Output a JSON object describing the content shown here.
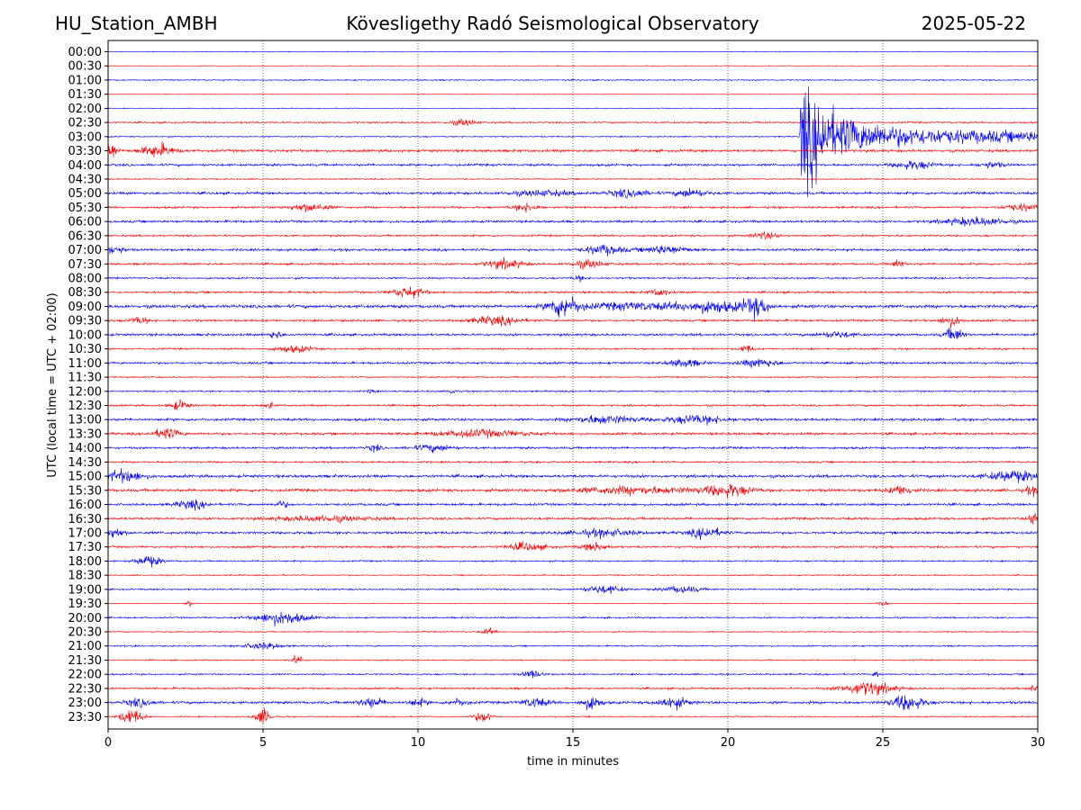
{
  "header": {
    "station": "HU_Station_AMBH",
    "title": "Kövesligethy Radó Seismological Observatory",
    "date": "2025-05-22"
  },
  "chart_data": {
    "type": "line",
    "title": "Kövesligethy Radó Seismological Observatory",
    "xlabel": "time in minutes",
    "ylabel": "UTC (local time = UTC + 02:00)",
    "xlim": [
      0,
      30
    ],
    "xticks": [
      0,
      5,
      10,
      15,
      20,
      25,
      30
    ],
    "grid": "vertical dotted at x ticks",
    "colors": {
      "even_rows": "#0000ff",
      "odd_rows": "#ff0000"
    },
    "rows": [
      "00:00",
      "00:30",
      "01:00",
      "01:30",
      "02:00",
      "02:30",
      "03:00",
      "03:30",
      "04:00",
      "04:30",
      "05:00",
      "05:30",
      "06:00",
      "06:30",
      "07:00",
      "07:30",
      "08:00",
      "08:30",
      "09:00",
      "09:30",
      "10:00",
      "10:30",
      "11:00",
      "11:30",
      "12:00",
      "12:30",
      "13:00",
      "13:30",
      "14:00",
      "14:30",
      "15:00",
      "15:30",
      "16:00",
      "16:30",
      "17:00",
      "17:30",
      "18:00",
      "18:30",
      "19:00",
      "19:30",
      "20:00",
      "20:30",
      "21:00",
      "21:30",
      "22:00",
      "22:30",
      "23:00",
      "23:30"
    ],
    "annotations": [
      {
        "row": "03:00",
        "description": "earthquake event",
        "start_minute": 22.3,
        "peak_minute": 22.7
      }
    ],
    "base_noise": [
      0.5,
      0.5,
      0.8,
      0.5,
      0.5,
      1.0,
      0.8,
      1.6,
      1.5,
      0.8,
      1.6,
      1.3,
      1.5,
      1.2,
      1.5,
      1.3,
      1.1,
      1.3,
      2.0,
      1.4,
      1.5,
      1.1,
      1.4,
      0.9,
      1.0,
      1.2,
      1.6,
      1.5,
      1.4,
      1.2,
      1.8,
      1.8,
      1.5,
      1.5,
      1.6,
      1.3,
      1.0,
      0.8,
      1.0,
      0.5,
      1.0,
      0.8,
      0.9,
      0.8,
      1.0,
      1.2,
      1.6,
      0.8
    ],
    "bursts": [
      {
        "row": "02:30",
        "x": 11.5,
        "w": 0.4,
        "a": 2.5
      },
      {
        "row": "03:30",
        "x": 0.1,
        "w": 0.2,
        "a": 6
      },
      {
        "row": "03:30",
        "x": 1.6,
        "w": 0.5,
        "a": 5
      },
      {
        "row": "04:00",
        "x": 26.0,
        "w": 0.6,
        "a": 3
      },
      {
        "row": "04:00",
        "x": 28.5,
        "w": 0.4,
        "a": 2
      },
      {
        "row": "05:00",
        "x": 16.8,
        "w": 0.6,
        "a": 3
      },
      {
        "row": "05:00",
        "x": 18.8,
        "w": 0.5,
        "a": 3
      },
      {
        "row": "05:00",
        "x": 14.0,
        "w": 1.0,
        "a": 2
      },
      {
        "row": "05:30",
        "x": 6.5,
        "w": 0.6,
        "a": 3
      },
      {
        "row": "05:30",
        "x": 13.5,
        "w": 0.4,
        "a": 3
      },
      {
        "row": "05:30",
        "x": 29.5,
        "w": 0.6,
        "a": 2.5
      },
      {
        "row": "06:00",
        "x": 28.0,
        "w": 1.0,
        "a": 3
      },
      {
        "row": "06:30",
        "x": 21.2,
        "w": 0.4,
        "a": 2.5
      },
      {
        "row": "07:00",
        "x": 0.2,
        "w": 0.3,
        "a": 3
      },
      {
        "row": "07:00",
        "x": 16.0,
        "w": 0.6,
        "a": 3.5
      },
      {
        "row": "07:00",
        "x": 18.0,
        "w": 0.7,
        "a": 3
      },
      {
        "row": "07:30",
        "x": 12.8,
        "w": 0.6,
        "a": 3.5
      },
      {
        "row": "07:30",
        "x": 15.5,
        "w": 0.5,
        "a": 3
      },
      {
        "row": "07:30",
        "x": 25.5,
        "w": 0.2,
        "a": 3
      },
      {
        "row": "08:00",
        "x": 15.2,
        "w": 0.2,
        "a": 2
      },
      {
        "row": "08:30",
        "x": 9.7,
        "w": 0.5,
        "a": 4
      },
      {
        "row": "08:30",
        "x": 17.8,
        "w": 0.3,
        "a": 2.5
      },
      {
        "row": "09:00",
        "x": 14.7,
        "w": 0.5,
        "a": 8
      },
      {
        "row": "09:00",
        "x": 19.5,
        "w": 1.0,
        "a": 4
      },
      {
        "row": "09:00",
        "x": 20.9,
        "w": 0.4,
        "a": 7
      },
      {
        "row": "09:00",
        "x": 17.0,
        "w": 1.5,
        "a": 2.5
      },
      {
        "row": "09:30",
        "x": 12.5,
        "w": 0.8,
        "a": 3
      },
      {
        "row": "09:30",
        "x": 27.2,
        "w": 0.3,
        "a": 4
      },
      {
        "row": "09:30",
        "x": 1.0,
        "w": 0.3,
        "a": 2.5
      },
      {
        "row": "10:00",
        "x": 5.4,
        "w": 0.2,
        "a": 3
      },
      {
        "row": "10:00",
        "x": 27.3,
        "w": 0.3,
        "a": 5
      },
      {
        "row": "10:00",
        "x": 23.5,
        "w": 0.6,
        "a": 2
      },
      {
        "row": "10:30",
        "x": 6.0,
        "w": 0.6,
        "a": 2.5
      },
      {
        "row": "10:30",
        "x": 20.6,
        "w": 0.2,
        "a": 3
      },
      {
        "row": "11:00",
        "x": 18.6,
        "w": 0.5,
        "a": 3
      },
      {
        "row": "11:00",
        "x": 21.0,
        "w": 0.6,
        "a": 3
      },
      {
        "row": "12:00",
        "x": 11.1,
        "w": 0.1,
        "a": 3
      },
      {
        "row": "12:00",
        "x": 8.5,
        "w": 0.1,
        "a": 2
      },
      {
        "row": "12:30",
        "x": 2.3,
        "w": 0.3,
        "a": 3.5
      },
      {
        "row": "12:30",
        "x": 5.2,
        "w": 0.1,
        "a": 3
      },
      {
        "row": "13:00",
        "x": 16.0,
        "w": 1.0,
        "a": 3
      },
      {
        "row": "13:00",
        "x": 19.0,
        "w": 1.0,
        "a": 3
      },
      {
        "row": "13:30",
        "x": 1.9,
        "w": 0.4,
        "a": 4
      },
      {
        "row": "13:30",
        "x": 12.0,
        "w": 1.5,
        "a": 2.5
      },
      {
        "row": "14:00",
        "x": 10.5,
        "w": 0.6,
        "a": 2.5
      },
      {
        "row": "14:00",
        "x": 8.6,
        "w": 0.2,
        "a": 2.5
      },
      {
        "row": "15:00",
        "x": 0.5,
        "w": 0.6,
        "a": 4.5
      },
      {
        "row": "15:00",
        "x": 29.2,
        "w": 0.8,
        "a": 4
      },
      {
        "row": "15:30",
        "x": 20.0,
        "w": 0.7,
        "a": 4.5
      },
      {
        "row": "15:30",
        "x": 17.0,
        "w": 2.0,
        "a": 2.5
      },
      {
        "row": "15:30",
        "x": 25.6,
        "w": 0.4,
        "a": 3.5
      },
      {
        "row": "15:30",
        "x": 29.8,
        "w": 0.2,
        "a": 3
      },
      {
        "row": "16:00",
        "x": 2.7,
        "w": 0.5,
        "a": 3
      },
      {
        "row": "16:00",
        "x": 5.6,
        "w": 0.2,
        "a": 2.5
      },
      {
        "row": "16:30",
        "x": 7.0,
        "w": 1.5,
        "a": 2
      },
      {
        "row": "16:30",
        "x": 29.9,
        "w": 0.2,
        "a": 5
      },
      {
        "row": "17:00",
        "x": 0.2,
        "w": 0.3,
        "a": 3.5
      },
      {
        "row": "17:00",
        "x": 19.3,
        "w": 0.5,
        "a": 4
      },
      {
        "row": "17:00",
        "x": 16.0,
        "w": 1.0,
        "a": 2.5
      },
      {
        "row": "17:30",
        "x": 13.5,
        "w": 0.6,
        "a": 3
      },
      {
        "row": "17:30",
        "x": 15.7,
        "w": 0.4,
        "a": 3
      },
      {
        "row": "18:00",
        "x": 1.3,
        "w": 0.4,
        "a": 4
      },
      {
        "row": "19:00",
        "x": 16.0,
        "w": 0.6,
        "a": 3
      },
      {
        "row": "19:00",
        "x": 18.5,
        "w": 0.6,
        "a": 2.5
      },
      {
        "row": "19:30",
        "x": 2.6,
        "w": 0.1,
        "a": 2.5
      },
      {
        "row": "19:30",
        "x": 25.0,
        "w": 0.2,
        "a": 2
      },
      {
        "row": "20:00",
        "x": 5.6,
        "w": 0.8,
        "a": 5
      },
      {
        "row": "20:30",
        "x": 12.3,
        "w": 0.2,
        "a": 2.5
      },
      {
        "row": "21:00",
        "x": 5.0,
        "w": 0.6,
        "a": 2.5
      },
      {
        "row": "21:30",
        "x": 6.1,
        "w": 0.2,
        "a": 3.5
      },
      {
        "row": "22:00",
        "x": 13.7,
        "w": 0.3,
        "a": 3
      },
      {
        "row": "22:00",
        "x": 24.8,
        "w": 0.1,
        "a": 3
      },
      {
        "row": "22:30",
        "x": 24.5,
        "w": 0.8,
        "a": 5
      },
      {
        "row": "22:30",
        "x": 29.9,
        "w": 0.2,
        "a": 2.5
      },
      {
        "row": "23:00",
        "x": 1.0,
        "w": 0.4,
        "a": 3
      },
      {
        "row": "23:00",
        "x": 8.5,
        "w": 0.4,
        "a": 3.5
      },
      {
        "row": "23:00",
        "x": 13.8,
        "w": 0.4,
        "a": 3.5
      },
      {
        "row": "23:00",
        "x": 15.6,
        "w": 0.3,
        "a": 5
      },
      {
        "row": "23:00",
        "x": 18.2,
        "w": 0.5,
        "a": 4
      },
      {
        "row": "23:00",
        "x": 25.8,
        "w": 0.5,
        "a": 6
      },
      {
        "row": "23:00",
        "x": 11.3,
        "w": 0.3,
        "a": 2.5
      },
      {
        "row": "23:00",
        "x": 10.0,
        "w": 0.3,
        "a": 2.5
      },
      {
        "row": "23:30",
        "x": 0.75,
        "w": 0.35,
        "a": 6
      },
      {
        "row": "23:30",
        "x": 5.0,
        "w": 0.25,
        "a": 6
      },
      {
        "row": "23:30",
        "x": 12.1,
        "w": 0.3,
        "a": 4
      }
    ]
  }
}
